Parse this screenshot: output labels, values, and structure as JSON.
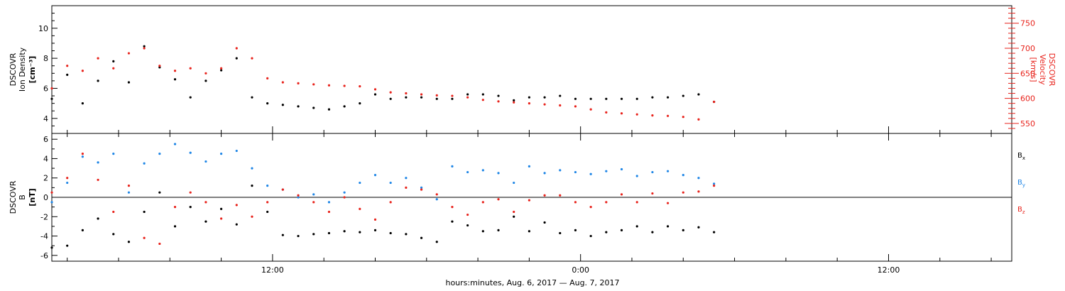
{
  "colors": {
    "black": "#000000",
    "red": "#e8231c",
    "blue": "#1f86e6"
  },
  "xaxis": {
    "title": "hours:minutes, Aug.  6, 2017 — Aug.  7, 2017",
    "ticks_hours": [
      12,
      24,
      36
    ],
    "tick_labels": [
      "12:00",
      "0:00",
      "12:00"
    ],
    "range_hours": [
      3.4,
      40.8
    ]
  },
  "chart_data": [
    {
      "type": "scatter",
      "panel": "top",
      "ylabel_left": [
        "DSCOVR",
        "Ion  Density",
        "[cm⁻³]"
      ],
      "ylabel_right": [
        "DSCOVR",
        "Velocity",
        "[km/s]"
      ],
      "left_axis": {
        "range": [
          3.0,
          11.5
        ],
        "ticks": [
          4,
          6,
          8,
          10
        ]
      },
      "right_axis": {
        "range": [
          530,
          785
        ],
        "ticks": [
          550,
          600,
          650,
          700,
          750
        ]
      },
      "series": [
        {
          "axis": "left",
          "color": "black",
          "x": [
            3.4,
            4.0,
            4.6,
            5.2,
            5.8,
            6.4,
            7.0,
            7.6,
            8.2,
            8.8,
            9.4,
            10.0,
            10.6,
            11.2,
            11.8,
            12.4,
            13.0,
            13.6,
            14.2,
            14.8,
            15.4,
            16.0,
            16.6,
            17.2,
            17.8,
            18.4,
            19.0,
            19.6,
            20.2,
            20.8,
            21.4,
            22.0,
            22.6,
            23.2,
            23.8,
            24.4,
            25.0,
            25.6,
            26.2,
            26.8,
            27.4,
            28.0,
            28.6,
            29.2
          ],
          "y": [
            5.3,
            6.9,
            5.0,
            6.5,
            7.8,
            6.4,
            8.8,
            7.4,
            6.6,
            5.4,
            6.5,
            7.2,
            8.0,
            5.4,
            5.0,
            4.9,
            4.8,
            4.7,
            4.6,
            4.8,
            5.0,
            5.6,
            5.3,
            5.4,
            5.4,
            5.3,
            5.3,
            5.6,
            5.6,
            5.5,
            5.2,
            5.4,
            5.4,
            5.5,
            5.3,
            5.3,
            5.3,
            5.3,
            5.3,
            5.4,
            5.4,
            5.5,
            5.6,
            5.1
          ]
        },
        {
          "axis": "right",
          "color": "red",
          "x": [
            3.4,
            4.0,
            4.6,
            5.2,
            5.8,
            6.4,
            7.0,
            7.6,
            8.2,
            8.8,
            9.4,
            10.0,
            10.6,
            11.2,
            11.8,
            12.4,
            13.0,
            13.6,
            14.2,
            14.8,
            15.4,
            16.0,
            16.6,
            17.2,
            17.8,
            18.4,
            19.0,
            19.6,
            20.2,
            20.8,
            21.4,
            22.0,
            22.6,
            23.2,
            23.8,
            24.4,
            25.0,
            25.6,
            26.2,
            26.8,
            27.4,
            28.0,
            28.6,
            29.2
          ],
          "y": [
            620,
            665,
            655,
            680,
            660,
            690,
            700,
            665,
            655,
            660,
            650,
            660,
            700,
            680,
            640,
            632,
            630,
            628,
            626,
            625,
            624,
            618,
            612,
            610,
            608,
            606,
            605,
            602,
            597,
            594,
            592,
            590,
            588,
            586,
            584,
            578,
            572,
            570,
            568,
            566,
            565,
            563,
            558,
            593
          ]
        }
      ]
    },
    {
      "type": "scatter",
      "panel": "bottom",
      "ylabel_left": [
        "DSCOVR",
        "B",
        "[nT]"
      ],
      "left_axis": {
        "range": [
          -6.6,
          6.6
        ],
        "ticks": [
          -6,
          -4,
          -2,
          0,
          2,
          4,
          6
        ]
      },
      "zero_line": true,
      "legend": [
        "Bx",
        "By",
        "Bz"
      ],
      "series": [
        {
          "name": "Bx",
          "color": "black",
          "x": [
            3.4,
            4.0,
            4.6,
            5.2,
            5.8,
            6.4,
            7.0,
            7.6,
            8.2,
            8.8,
            9.4,
            10.0,
            10.6,
            11.2,
            11.8,
            12.4,
            13.0,
            13.6,
            14.2,
            14.8,
            15.4,
            16.0,
            16.6,
            17.2,
            17.8,
            18.4,
            19.0,
            19.6,
            20.2,
            20.8,
            21.4,
            22.0,
            22.6,
            23.2,
            23.8,
            24.4,
            25.0,
            25.6,
            26.2,
            26.8,
            27.4,
            28.0,
            28.6,
            29.2
          ],
          "y": [
            -5.2,
            -5.0,
            -3.4,
            -2.2,
            -3.8,
            -4.6,
            -1.5,
            0.5,
            -3.0,
            -1.0,
            -2.5,
            -1.2,
            -2.8,
            1.2,
            -1.5,
            -3.9,
            -4.0,
            -3.8,
            -3.7,
            -3.5,
            -3.6,
            -3.4,
            -3.7,
            -3.8,
            -4.2,
            -4.6,
            -2.5,
            -2.9,
            -3.5,
            -3.4,
            -2.0,
            -3.5,
            -2.6,
            -3.7,
            -3.4,
            -4.0,
            -3.6,
            -3.4,
            -3.0,
            -3.6,
            -3.0,
            -3.4,
            -3.1,
            -3.6
          ]
        },
        {
          "name": "By",
          "color": "blue",
          "x": [
            3.4,
            4.0,
            4.6,
            5.2,
            5.8,
            6.4,
            7.0,
            7.6,
            8.2,
            8.8,
            9.4,
            10.0,
            10.6,
            11.2,
            11.8,
            12.4,
            13.0,
            13.6,
            14.2,
            14.8,
            15.4,
            16.0,
            16.6,
            17.2,
            17.8,
            18.4,
            19.0,
            19.6,
            20.2,
            20.8,
            21.4,
            22.0,
            22.6,
            23.2,
            23.8,
            24.4,
            25.0,
            25.6,
            26.2,
            26.8,
            27.4,
            28.0,
            28.6,
            29.2
          ],
          "y": [
            -0.5,
            1.5,
            4.2,
            3.6,
            4.5,
            0.5,
            3.5,
            4.5,
            5.5,
            4.6,
            3.7,
            4.5,
            4.8,
            3.0,
            1.2,
            0.8,
            0.0,
            0.3,
            -0.5,
            0.5,
            1.5,
            2.3,
            1.5,
            2.0,
            1.0,
            -0.2,
            3.2,
            2.6,
            2.8,
            2.5,
            1.5,
            3.2,
            2.5,
            2.8,
            2.6,
            2.4,
            2.7,
            2.9,
            2.2,
            2.6,
            2.7,
            2.3,
            2.0,
            1.4
          ]
        },
        {
          "name": "Bz",
          "color": "red",
          "x": [
            3.4,
            4.0,
            4.6,
            5.2,
            5.8,
            6.4,
            7.0,
            7.6,
            8.2,
            8.8,
            9.4,
            10.0,
            10.6,
            11.2,
            11.8,
            12.4,
            13.0,
            13.6,
            14.2,
            14.8,
            15.4,
            16.0,
            16.6,
            17.2,
            17.8,
            18.4,
            19.0,
            19.6,
            20.2,
            20.8,
            21.4,
            22.0,
            22.6,
            23.2,
            23.8,
            24.4,
            25.0,
            25.6,
            26.2,
            26.8,
            27.4,
            28.0,
            28.6,
            29.2
          ],
          "y": [
            0.5,
            2.0,
            4.5,
            1.8,
            -1.5,
            1.2,
            -4.2,
            -4.8,
            -1.0,
            0.5,
            -0.5,
            -2.2,
            -0.8,
            -2.0,
            -0.5,
            0.8,
            0.2,
            -0.5,
            -1.5,
            0.0,
            -1.2,
            -2.3,
            -0.5,
            1.0,
            0.8,
            0.3,
            -1.0,
            -1.8,
            -0.5,
            -0.2,
            -1.5,
            -0.3,
            0.2,
            0.2,
            -0.5,
            -1.0,
            -0.5,
            0.3,
            -0.5,
            0.4,
            -0.6,
            0.5,
            0.6,
            1.2
          ]
        }
      ]
    }
  ]
}
